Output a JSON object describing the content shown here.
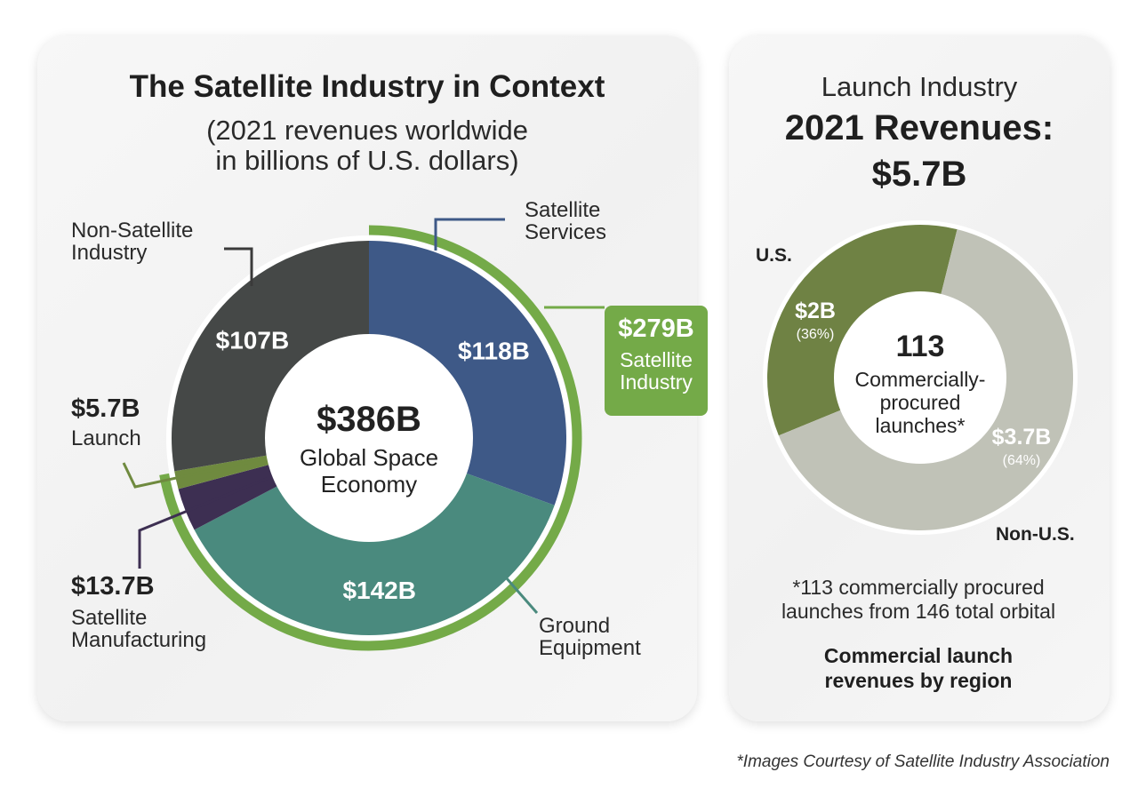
{
  "left": {
    "title": "The Satellite Industry in Context",
    "subtitle_line1": "(2021 revenues worldwide",
    "subtitle_line2": "in billions of U.S. dollars)",
    "center_value": "$386B",
    "center_line1": "Global Space",
    "center_line2": "Economy",
    "satellite_industry": {
      "value": "$279B",
      "label_line1": "Satellite",
      "label_line2": "Industry"
    }
  },
  "right": {
    "title_line1": "Launch Industry",
    "title_line2": "2021 Revenues:",
    "title_line3": "$5.7B",
    "center_value": "113",
    "center_line1": "Commercially-",
    "center_line2": "procured",
    "center_line3": "launches*",
    "footnote_line1": "*113 commercially procured",
    "footnote_line2": "launches from 146 total orbital",
    "caption_line1": "Commercial launch",
    "caption_line2": "revenues by region"
  },
  "credit": "*Images Courtesy of Satellite Industry Association",
  "chart_data": [
    {
      "type": "pie",
      "title": "The Satellite Industry in Context",
      "subtitle": "(2021 revenues worldwide in billions of U.S. dollars)",
      "unit": "billions of U.S. dollars",
      "total": 386,
      "slices": [
        {
          "label": "Satellite Services",
          "value": 118,
          "value_label": "$118B",
          "color": "#3e5987"
        },
        {
          "label": "Ground Equipment",
          "value": 142,
          "value_label": "$142B",
          "color": "#4a8a7e"
        },
        {
          "label": "Satellite Manufacturing",
          "value": 13.7,
          "value_label": "$13.7B",
          "color": "#3d2f52"
        },
        {
          "label": "Launch",
          "value": 5.7,
          "value_label": "$5.7B",
          "color": "#6f8a3f"
        },
        {
          "label": "Non-Satellite Industry",
          "value": 107,
          "value_label": "$107B",
          "color": "#454847"
        }
      ],
      "group": {
        "label": "Satellite Industry",
        "value": 279,
        "value_label": "$279B",
        "color": "#74aa48"
      }
    },
    {
      "type": "pie",
      "title": "Launch Industry 2021 Revenues: $5.7B",
      "slices": [
        {
          "label": "U.S.",
          "value": 2,
          "value_label": "$2B",
          "percent_label": "(36%)",
          "color": "#6f8244"
        },
        {
          "label": "Non-U.S.",
          "value": 3.7,
          "value_label": "$3.7B",
          "percent_label": "(64%)",
          "color": "#c0c2b7"
        }
      ]
    }
  ]
}
